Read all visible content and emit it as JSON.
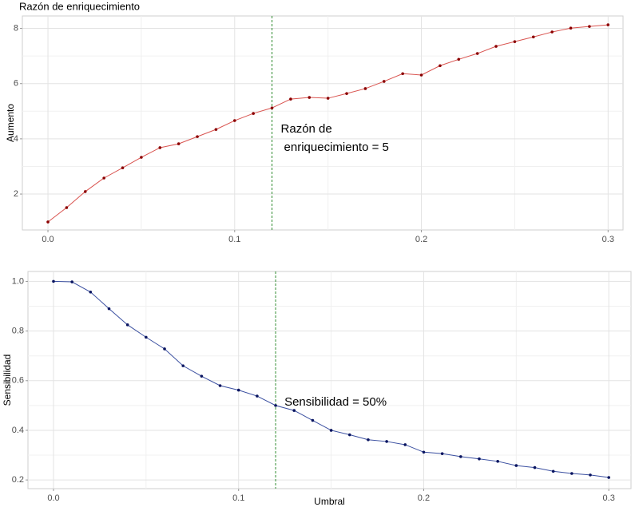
{
  "chart_data": [
    {
      "type": "line",
      "title": "Razón de enriquecimiento",
      "y_label": "Aumento",
      "x": [
        0,
        0.01,
        0.02,
        0.03,
        0.04,
        0.05,
        0.06,
        0.07,
        0.08,
        0.09,
        0.1,
        0.11,
        0.12,
        0.13,
        0.14,
        0.15,
        0.16,
        0.17,
        0.18,
        0.19,
        0.2,
        0.21,
        0.22,
        0.23,
        0.24,
        0.25,
        0.26,
        0.27,
        0.28,
        0.29,
        0.3
      ],
      "values": [
        0.99,
        1.51,
        2.09,
        2.58,
        2.95,
        3.33,
        3.68,
        3.82,
        4.08,
        4.34,
        4.66,
        4.92,
        5.12,
        5.44,
        5.5,
        5.47,
        5.64,
        5.82,
        6.08,
        6.36,
        6.31,
        6.65,
        6.88,
        7.09,
        7.35,
        7.52,
        7.69,
        7.87,
        8.01,
        8.07,
        8.13
      ],
      "color": "#d9534f",
      "point_color": "#8b0000",
      "xlim": [
        -0.0137,
        0.308
      ],
      "ylim": [
        0.7,
        8.45
      ],
      "xticks": [
        {
          "value": 0,
          "label": "0.0"
        },
        0.1,
        0.2,
        0.3
      ],
      "yticks": [
        2,
        4,
        6,
        8
      ],
      "grid": true,
      "vline": 0.12,
      "vline_color": "#2e8b2e",
      "annotation": [
        "Razón de",
        "enriquecimiento = 5"
      ]
    },
    {
      "type": "line",
      "y_label": "Sensibilidad",
      "x_label": "Umbral",
      "x": [
        0,
        0.01,
        0.02,
        0.03,
        0.04,
        0.05,
        0.06,
        0.07,
        0.08,
        0.09,
        0.1,
        0.11,
        0.12,
        0.13,
        0.14,
        0.15,
        0.16,
        0.17,
        0.18,
        0.19,
        0.2,
        0.21,
        0.22,
        0.23,
        0.24,
        0.25,
        0.26,
        0.27,
        0.28,
        0.29,
        0.3
      ],
      "values": [
        1.0,
        0.998,
        0.957,
        0.89,
        0.825,
        0.775,
        0.728,
        0.66,
        0.618,
        0.58,
        0.562,
        0.538,
        0.5,
        0.48,
        0.44,
        0.4,
        0.382,
        0.362,
        0.355,
        0.342,
        0.312,
        0.306,
        0.294,
        0.285,
        0.275,
        0.258,
        0.25,
        0.235,
        0.226,
        0.22,
        0.21
      ],
      "color": "#3a4fa0",
      "point_color": "#0a1560",
      "xlim": [
        -0.0138,
        0.312
      ],
      "ylim": [
        0.165,
        1.04
      ],
      "xticks": [
        {
          "value": 0,
          "label": "0.0"
        },
        0.1,
        0.2,
        0.3
      ],
      "yticks": [
        {
          "value": 1,
          "label": "1.0"
        },
        0.8,
        0.6,
        0.4,
        0.2
      ],
      "grid": true,
      "vline": 0.12,
      "vline_color": "#2e8b2e",
      "annotation": [
        "Sensibilidad = 50%"
      ]
    }
  ]
}
